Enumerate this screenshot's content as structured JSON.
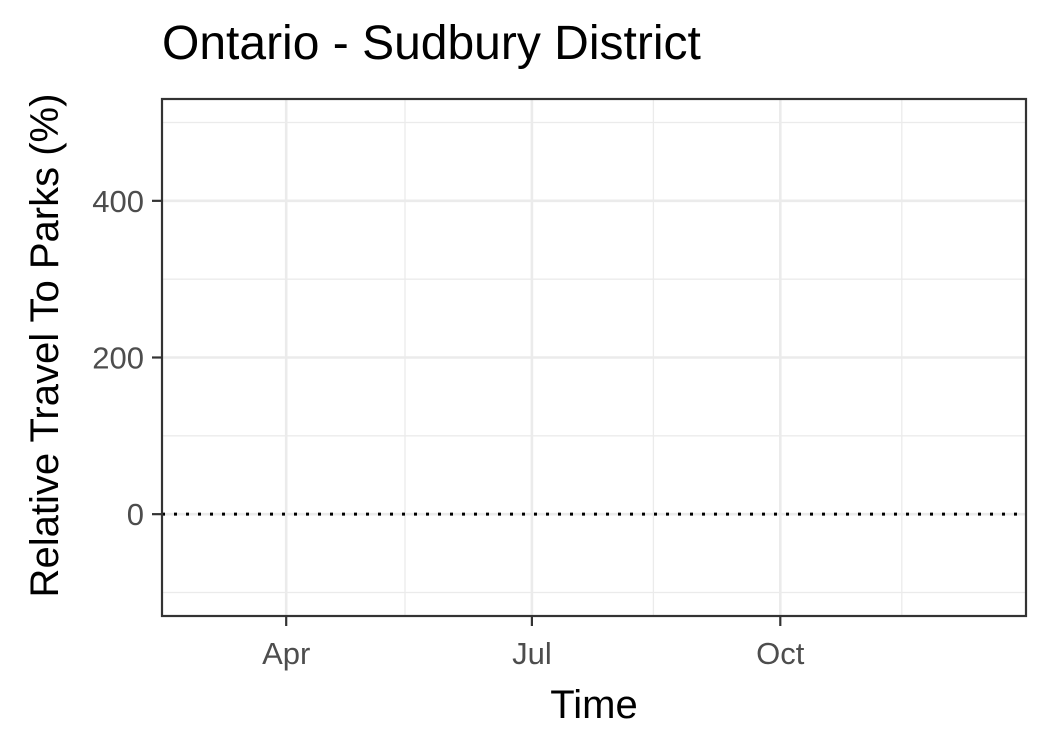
{
  "chart_data": {
    "type": "line",
    "title": "Ontario - Sudbury District",
    "xlabel": "Time",
    "ylabel": "Relative Travel To Parks (%)",
    "x_axis": {
      "scale": "date",
      "range": [
        "2020-02-15",
        "2020-12-31"
      ],
      "ticks": [
        {
          "label": "Apr",
          "date": "2020-04-01"
        },
        {
          "label": "Jul",
          "date": "2020-07-01"
        },
        {
          "label": "Oct",
          "date": "2020-10-01"
        }
      ],
      "minor_ticks": [
        "2020-02-15",
        "2020-05-15",
        "2020-08-15",
        "2020-11-15"
      ]
    },
    "y_axis": {
      "range": [
        -130,
        530
      ],
      "ticks": [
        0,
        200,
        400
      ],
      "minor_ticks": [
        -100,
        100,
        300,
        500
      ]
    },
    "reference_line": {
      "y": 0,
      "style": "dotted",
      "color": "#000000"
    },
    "series": [],
    "grid": true,
    "legend": "none",
    "colors": {
      "panel_border": "#333333",
      "grid": "#ebebeb",
      "tick_text": "#4d4d4d"
    }
  }
}
